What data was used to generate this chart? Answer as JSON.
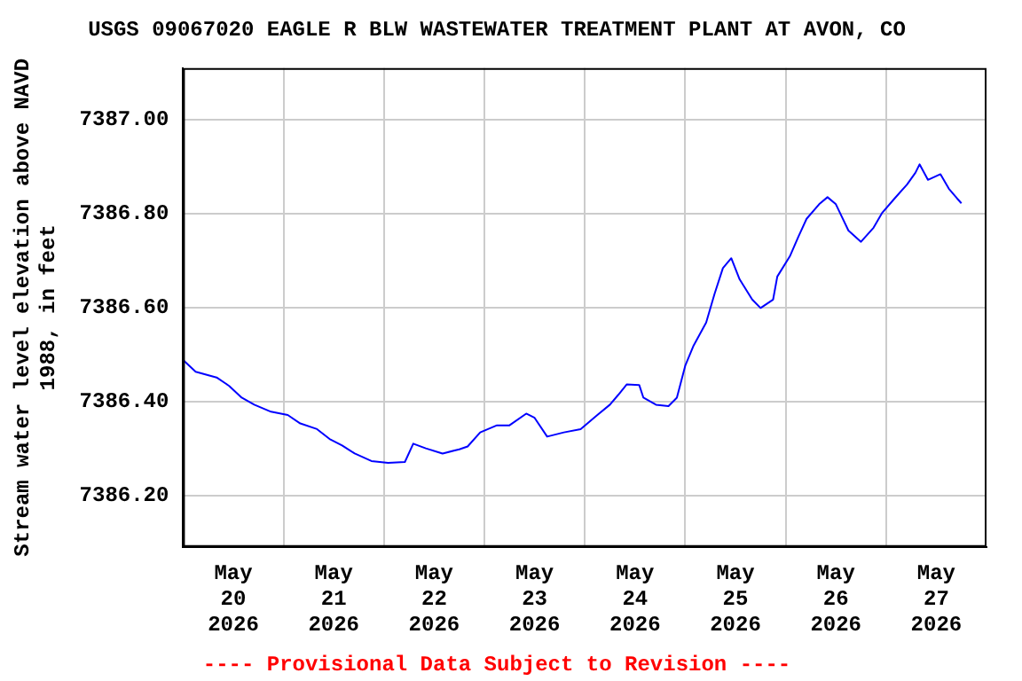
{
  "chart_data": {
    "type": "line",
    "title": "USGS 09067020 EAGLE R BLW WASTEWATER TREATMENT PLANT AT AVON, CO",
    "ylabel": "Stream water level elevation above NAVD 1988, in feet",
    "annotations": [
      "---- Provisional Data Subject to Revision ----"
    ],
    "x": [
      "2026-05-20T00:00",
      "2026-05-20T03:00",
      "2026-05-20T08:00",
      "2026-05-20T11:00",
      "2026-05-20T14:00",
      "2026-05-20T17:00",
      "2026-05-20T21:00",
      "2026-05-21T01:00",
      "2026-05-21T04:00",
      "2026-05-21T08:00",
      "2026-05-21T11:00",
      "2026-05-21T14:00",
      "2026-05-21T17:00",
      "2026-05-21T21:00",
      "2026-05-22T01:00",
      "2026-05-22T05:00",
      "2026-05-22T07:00",
      "2026-05-22T10:00",
      "2026-05-22T14:00",
      "2026-05-22T18:00",
      "2026-05-22T20:00",
      "2026-05-22T23:00",
      "2026-05-23T03:00",
      "2026-05-23T06:00",
      "2026-05-23T10:00",
      "2026-05-23T12:00",
      "2026-05-23T15:00",
      "2026-05-23T19:00",
      "2026-05-23T23:00",
      "2026-05-24T03:00",
      "2026-05-24T06:00",
      "2026-05-24T08:00",
      "2026-05-24T10:00",
      "2026-05-24T13:00",
      "2026-05-24T14:00",
      "2026-05-24T17:00",
      "2026-05-24T20:00",
      "2026-05-24T22:00",
      "2026-05-25T00:00",
      "2026-05-25T02:00",
      "2026-05-25T05:00",
      "2026-05-25T07:00",
      "2026-05-25T09:00",
      "2026-05-25T11:00",
      "2026-05-25T13:00",
      "2026-05-25T16:00",
      "2026-05-25T18:00",
      "2026-05-25T21:00",
      "2026-05-25T22:00",
      "2026-05-26T01:00",
      "2026-05-26T03:00",
      "2026-05-26T05:00",
      "2026-05-26T08:00",
      "2026-05-26T10:00",
      "2026-05-26T12:00",
      "2026-05-26T15:00",
      "2026-05-26T18:00",
      "2026-05-26T21:00",
      "2026-05-26T23:00",
      "2026-05-27T02:00",
      "2026-05-27T05:00",
      "2026-05-27T07:00",
      "2026-05-27T08:00",
      "2026-05-27T10:00",
      "2026-05-27T13:00",
      "2026-05-27T15:00",
      "2026-05-27T17:00",
      "2026-05-27T18:00"
    ],
    "series": [
      {
        "color": "#0000ff",
        "values": [
          7386.488,
          7386.463,
          7386.451,
          7386.433,
          7386.408,
          7386.393,
          7386.378,
          7386.371,
          7386.353,
          7386.341,
          7386.32,
          7386.306,
          7386.289,
          7386.273,
          7386.269,
          7386.271,
          7386.31,
          7386.3,
          7386.289,
          7386.298,
          7386.304,
          7386.334,
          7386.349,
          7386.349,
          7386.374,
          7386.365,
          7386.325,
          7386.334,
          7386.341,
          7386.371,
          7386.393,
          7386.414,
          7386.436,
          7386.435,
          7386.408,
          7386.393,
          7386.39,
          7386.408,
          7386.476,
          7386.519,
          7386.568,
          7386.629,
          7386.684,
          7386.705,
          7386.66,
          7386.617,
          7386.599,
          7386.617,
          7386.666,
          7386.709,
          7386.75,
          7386.789,
          7386.82,
          7386.835,
          7386.82,
          7386.764,
          7386.74,
          7386.77,
          7386.801,
          7386.832,
          7386.862,
          7386.887,
          7386.905,
          7386.872,
          7386.884,
          7386.853,
          7386.832,
          7386.822
        ]
      }
    ],
    "xlim": [
      "2026-05-20T00:00",
      "2026-05-28T00:00"
    ],
    "xticks": [
      {
        "value": "2026-05-20T12:00",
        "label": "May\n20\n2026"
      },
      {
        "value": "2026-05-21T00:00",
        "label": null
      },
      {
        "value": "2026-05-21T12:00",
        "label": "May\n21\n2026"
      },
      {
        "value": "2026-05-22T00:00",
        "label": null
      },
      {
        "value": "2026-05-22T12:00",
        "label": "May\n22\n2026"
      },
      {
        "value": "2026-05-23T00:00",
        "label": null
      },
      {
        "value": "2026-05-23T12:00",
        "label": "May\n23\n2026"
      },
      {
        "value": "2026-05-24T00:00",
        "label": null
      },
      {
        "value": "2026-05-24T12:00",
        "label": "May\n24\n2026"
      },
      {
        "value": "2026-05-25T00:00",
        "label": null
      },
      {
        "value": "2026-05-25T12:00",
        "label": "May\n25\n2026"
      },
      {
        "value": "2026-05-26T00:00",
        "label": null
      },
      {
        "value": "2026-05-26T12:00",
        "label": "May\n26\n2026"
      },
      {
        "value": "2026-05-27T00:00",
        "label": null
      },
      {
        "value": "2026-05-27T12:00",
        "label": "May\n27\n2026"
      }
    ],
    "ylim": [
      7386.09,
      7387.11
    ],
    "yticks": [
      {
        "value": 7386.2,
        "label": "7386.20"
      },
      {
        "value": 7386.4,
        "label": "7386.40"
      },
      {
        "value": 7386.6,
        "label": "7386.60"
      },
      {
        "value": 7386.8,
        "label": "7386.80"
      },
      {
        "value": 7387.0,
        "label": "7387.00"
      }
    ],
    "grid": true,
    "legend": false,
    "marker": "none",
    "line_style": "solid"
  }
}
